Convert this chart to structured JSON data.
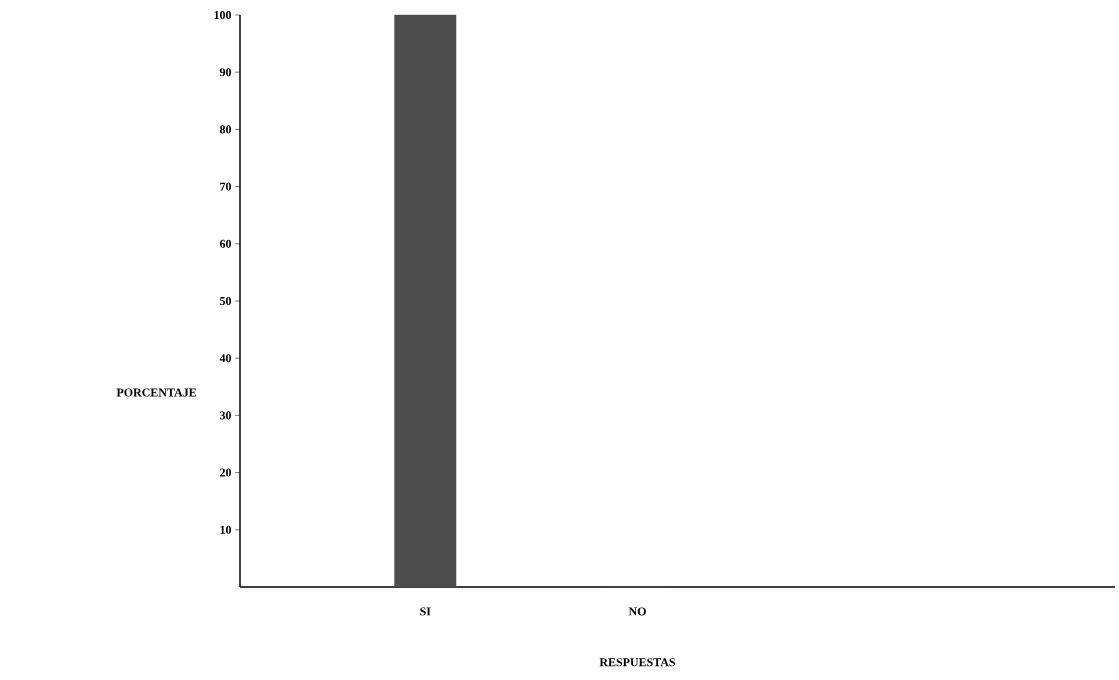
{
  "chart_data": {
    "type": "bar",
    "xlabel": "RESPUESTAS",
    "ylabel": "PORCENTAJE",
    "categories": [
      "SI",
      "NO"
    ],
    "values": [
      100,
      0
    ],
    "color": "#4d4d4d",
    "ylim": [
      0,
      100
    ],
    "yticks": [
      10,
      20,
      30,
      40,
      50,
      60,
      70,
      80,
      90,
      100
    ]
  }
}
